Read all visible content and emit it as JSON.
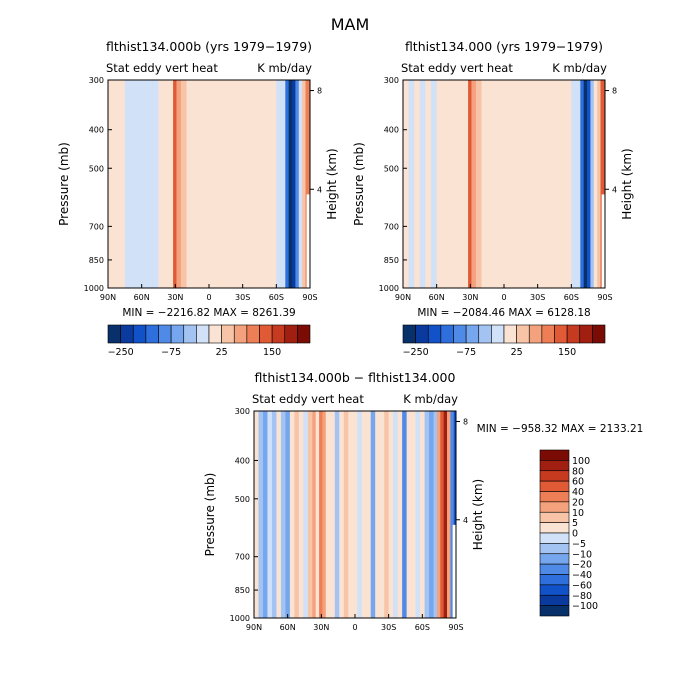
{
  "figure_title": "MAM",
  "colors": {
    "panel_bg": "#fbe8dc",
    "frame": "#000000"
  },
  "chart_data": [
    {
      "type": "heatmap",
      "title": "flthist134.000b (yrs 1979−1979)",
      "subtitle_left": "Stat eddy vert heat",
      "subtitle_right": "K mb/day",
      "ylabel": "Pressure (mb)",
      "ylabel_right": "Height (km)",
      "x_ticks": [
        "90N",
        "60N",
        "30N",
        "0",
        "30S",
        "60S",
        "90S"
      ],
      "y_ticks": [
        300,
        400,
        500,
        700,
        850,
        1000
      ],
      "y_ticks_right": [
        8,
        4
      ],
      "stats_text": "MIN = −2216.82   MAX = 8261.39",
      "min": -2216.82,
      "max": 8261.39,
      "colorbar_labels": [
        "−250",
        "−75",
        "25",
        "150"
      ],
      "colorbar_colors": [
        "#08306b",
        "#0a3a9e",
        "#1252c8",
        "#2f6fdd",
        "#4f8be6",
        "#76a7ee",
        "#a3c4f3",
        "#d0e1f8",
        "#fbe3d3",
        "#f7c4a8",
        "#f4a27d",
        "#ee7e55",
        "#e05a35",
        "#c63a1f",
        "#a11f10",
        "#7a0b05"
      ],
      "bands": [
        {
          "lat": 90,
          "value": 5
        },
        {
          "lat": 85,
          "value": 5
        },
        {
          "lat": 80,
          "value": 0
        },
        {
          "lat": 75,
          "value": -5
        },
        {
          "lat": 70,
          "value": -5
        },
        {
          "lat": 65,
          "value": -5
        },
        {
          "lat": 60,
          "value": -5
        },
        {
          "lat": 55,
          "value": -5
        },
        {
          "lat": 50,
          "value": -5
        },
        {
          "lat": 45,
          "value": 0
        },
        {
          "lat": 40,
          "value": 5
        },
        {
          "lat": 35,
          "value": 5
        },
        {
          "lat": 32,
          "value": 80
        },
        {
          "lat": 29,
          "value": 50
        },
        {
          "lat": 25,
          "value": 10
        },
        {
          "lat": 20,
          "value": 5
        },
        {
          "lat": 15,
          "value": 5
        },
        {
          "lat": 10,
          "value": 5
        },
        {
          "lat": 5,
          "value": 5
        },
        {
          "lat": 0,
          "value": 5
        },
        {
          "lat": -5,
          "value": 5
        },
        {
          "lat": -10,
          "value": 0
        },
        {
          "lat": -15,
          "value": 5
        },
        {
          "lat": -20,
          "value": 5
        },
        {
          "lat": -25,
          "value": 5
        },
        {
          "lat": -30,
          "value": 5
        },
        {
          "lat": -35,
          "value": 0
        },
        {
          "lat": -40,
          "value": 5
        },
        {
          "lat": -45,
          "value": 5
        },
        {
          "lat": -50,
          "value": 5
        },
        {
          "lat": -55,
          "value": 0
        },
        {
          "lat": -60,
          "value": -5
        },
        {
          "lat": -65,
          "value": -20
        },
        {
          "lat": -68,
          "value": -120
        },
        {
          "lat": -71,
          "value": -250
        },
        {
          "lat": -74,
          "value": -200
        },
        {
          "lat": -77,
          "value": -80
        },
        {
          "lat": -80,
          "value": -20
        },
        {
          "lat": -83,
          "value": 25
        },
        {
          "lat": -86,
          "value": 60
        }
      ]
    },
    {
      "type": "heatmap",
      "title": "flthist134.000 (yrs 1979−1979)",
      "subtitle_left": "Stat eddy vert heat",
      "subtitle_right": "K mb/day",
      "ylabel": "Pressure (mb)",
      "ylabel_right": "Height (km)",
      "x_ticks": [
        "90N",
        "60N",
        "30N",
        "0",
        "30S",
        "60S",
        "90S"
      ],
      "y_ticks": [
        300,
        400,
        500,
        700,
        850,
        1000
      ],
      "y_ticks_right": [
        8,
        4
      ],
      "stats_text": "MIN = −2084.46   MAX = 6128.18",
      "min": -2084.46,
      "max": 6128.18,
      "colorbar_labels": [
        "−250",
        "−75",
        "25",
        "150"
      ],
      "colorbar_colors": [
        "#08306b",
        "#0a3a9e",
        "#1252c8",
        "#2f6fdd",
        "#4f8be6",
        "#76a7ee",
        "#a3c4f3",
        "#d0e1f8",
        "#fbe3d3",
        "#f7c4a8",
        "#f4a27d",
        "#ee7e55",
        "#e05a35",
        "#c63a1f",
        "#a11f10",
        "#7a0b05"
      ],
      "bands": [
        {
          "lat": 90,
          "value": 0
        },
        {
          "lat": 85,
          "value": -5
        },
        {
          "lat": 80,
          "value": 0
        },
        {
          "lat": 75,
          "value": -5
        },
        {
          "lat": 70,
          "value": 0
        },
        {
          "lat": 65,
          "value": -5
        },
        {
          "lat": 60,
          "value": 5
        },
        {
          "lat": 55,
          "value": 0
        },
        {
          "lat": 50,
          "value": 5
        },
        {
          "lat": 45,
          "value": 0
        },
        {
          "lat": 40,
          "value": 5
        },
        {
          "lat": 35,
          "value": 5
        },
        {
          "lat": 32,
          "value": 80
        },
        {
          "lat": 29,
          "value": 40
        },
        {
          "lat": 25,
          "value": 10
        },
        {
          "lat": 20,
          "value": 5
        },
        {
          "lat": 15,
          "value": 5
        },
        {
          "lat": 10,
          "value": 5
        },
        {
          "lat": 5,
          "value": 0
        },
        {
          "lat": 0,
          "value": 5
        },
        {
          "lat": -5,
          "value": 5
        },
        {
          "lat": -10,
          "value": 5
        },
        {
          "lat": -15,
          "value": 0
        },
        {
          "lat": -20,
          "value": 5
        },
        {
          "lat": -25,
          "value": 5
        },
        {
          "lat": -30,
          "value": 5
        },
        {
          "lat": -35,
          "value": 0
        },
        {
          "lat": -40,
          "value": 5
        },
        {
          "lat": -45,
          "value": 5
        },
        {
          "lat": -50,
          "value": 0
        },
        {
          "lat": -55,
          "value": 5
        },
        {
          "lat": -60,
          "value": -5
        },
        {
          "lat": -65,
          "value": -20
        },
        {
          "lat": -68,
          "value": -100
        },
        {
          "lat": -71,
          "value": -250
        },
        {
          "lat": -74,
          "value": -150
        },
        {
          "lat": -77,
          "value": -40
        },
        {
          "lat": -80,
          "value": 5
        },
        {
          "lat": -83,
          "value": 25
        },
        {
          "lat": -86,
          "value": 80
        }
      ]
    },
    {
      "type": "heatmap",
      "title": "flthist134.000b − flthist134.000",
      "subtitle_left": "Stat eddy vert heat",
      "subtitle_right": "K mb/day",
      "ylabel": "Pressure (mb)",
      "ylabel_right": "Height (km)",
      "x_ticks": [
        "90N",
        "60N",
        "30N",
        "0",
        "30S",
        "60S",
        "90S"
      ],
      "y_ticks": [
        300,
        400,
        500,
        700,
        850,
        1000
      ],
      "y_ticks_right": [
        8,
        4
      ],
      "stats_text": "MIN = −958.32   MAX = 2133.21",
      "min": -958.32,
      "max": 2133.21,
      "colorbar_labels": [
        "100",
        "80",
        "60",
        "40",
        "20",
        "10",
        "5",
        "0",
        "−5",
        "−10",
        "−20",
        "−40",
        "−60",
        "−80",
        "−100"
      ],
      "colorbar_colors": [
        "#7a0b05",
        "#a11f10",
        "#c63a1f",
        "#e05a35",
        "#ee7e55",
        "#f4a27d",
        "#f7c4a8",
        "#fbe3d3",
        "#d0e1f8",
        "#a3c4f3",
        "#76a7ee",
        "#4f8be6",
        "#2f6fdd",
        "#1252c8",
        "#0a3a9e",
        "#08306b"
      ],
      "bands": [
        {
          "lat": 90,
          "value": 5
        },
        {
          "lat": 86,
          "value": -5
        },
        {
          "lat": 82,
          "value": -10
        },
        {
          "lat": 78,
          "value": 0
        },
        {
          "lat": 74,
          "value": -5
        },
        {
          "lat": 70,
          "value": 5
        },
        {
          "lat": 66,
          "value": -5
        },
        {
          "lat": 62,
          "value": -10
        },
        {
          "lat": 58,
          "value": 5
        },
        {
          "lat": 54,
          "value": 10
        },
        {
          "lat": 50,
          "value": 5
        },
        {
          "lat": 46,
          "value": 0
        },
        {
          "lat": 42,
          "value": 10
        },
        {
          "lat": 38,
          "value": 20
        },
        {
          "lat": 35,
          "value": 5
        },
        {
          "lat": 32,
          "value": 40
        },
        {
          "lat": 29,
          "value": 20
        },
        {
          "lat": 26,
          "value": 5
        },
        {
          "lat": 22,
          "value": 5
        },
        {
          "lat": 18,
          "value": -5
        },
        {
          "lat": 14,
          "value": 5
        },
        {
          "lat": 10,
          "value": 10
        },
        {
          "lat": 6,
          "value": 5
        },
        {
          "lat": 2,
          "value": 5
        },
        {
          "lat": -2,
          "value": 0
        },
        {
          "lat": -6,
          "value": 5
        },
        {
          "lat": -10,
          "value": 5
        },
        {
          "lat": -14,
          "value": -10
        },
        {
          "lat": -18,
          "value": 5
        },
        {
          "lat": -22,
          "value": 5
        },
        {
          "lat": -26,
          "value": 10
        },
        {
          "lat": -30,
          "value": 5
        },
        {
          "lat": -34,
          "value": 0
        },
        {
          "lat": -38,
          "value": 5
        },
        {
          "lat": -42,
          "value": -20
        },
        {
          "lat": -46,
          "value": 5
        },
        {
          "lat": -50,
          "value": 5
        },
        {
          "lat": -54,
          "value": 0
        },
        {
          "lat": -58,
          "value": 5
        },
        {
          "lat": -62,
          "value": -5
        },
        {
          "lat": -66,
          "value": -10
        },
        {
          "lat": -70,
          "value": -5
        },
        {
          "lat": -73,
          "value": 20
        },
        {
          "lat": -76,
          "value": 60
        },
        {
          "lat": -79,
          "value": 100
        },
        {
          "lat": -82,
          "value": 20
        },
        {
          "lat": -85,
          "value": -20
        },
        {
          "lat": -88,
          "value": -60
        }
      ]
    }
  ]
}
